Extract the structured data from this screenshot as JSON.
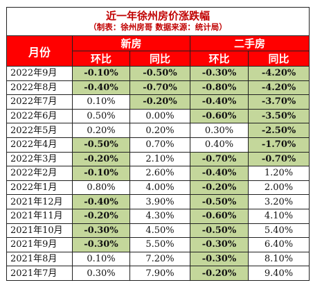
{
  "title": "近一年徐州房价涨跌幅",
  "subtitle": "（制表：徐州房哥   数据来源：统计局）",
  "headers": {
    "month": "月份",
    "new_house": "新房",
    "second_hand": "二手房",
    "mom": "环比",
    "yoy": "同比"
  },
  "colors": {
    "header_bg": "#ff0000",
    "title_text": "#c00000",
    "negative_highlight": "#c4d79b"
  },
  "rows": [
    {
      "month": "2022年9月",
      "new_mom": "-0.10%",
      "new_yoy": "-0.50%",
      "old_mom": "-0.30%",
      "old_yoy": "-4.20%"
    },
    {
      "month": "2022年8月",
      "new_mom": "-0.40%",
      "new_yoy": "-0.70%",
      "old_mom": "-0.80%",
      "old_yoy": "-4.20%"
    },
    {
      "month": "2022年7月",
      "new_mom": "0.10%",
      "new_yoy": "-0.20%",
      "old_mom": "-0.40%",
      "old_yoy": "-3.70%"
    },
    {
      "month": "2022年6月",
      "new_mom": "0.50%",
      "new_yoy": "0.00%",
      "old_mom": "-0.60%",
      "old_yoy": "-3.50%"
    },
    {
      "month": "2022年5月",
      "new_mom": "0.20%",
      "new_yoy": "0.20%",
      "old_mom": "0.30%",
      "old_yoy": "-2.50%"
    },
    {
      "month": "2022年4月",
      "new_mom": "-0.50%",
      "new_yoy": "0.70%",
      "old_mom": "0.40%",
      "old_yoy": "-1.70%"
    },
    {
      "month": "2022年3月",
      "new_mom": "-0.20%",
      "new_yoy": "2.10%",
      "old_mom": "-0.70%",
      "old_yoy": "-0.70%"
    },
    {
      "month": "2022年2月",
      "new_mom": "-0.10%",
      "new_yoy": "2.60%",
      "old_mom": "-0.40%",
      "old_yoy": "1.20%"
    },
    {
      "month": "2022年1月",
      "new_mom": "0.80%",
      "new_yoy": "4.00%",
      "old_mom": "-0.20%",
      "old_yoy": "2.00%"
    },
    {
      "month": "2021年12月",
      "new_mom": "-0.40%",
      "new_yoy": "3.90%",
      "old_mom": "-0.50%",
      "old_yoy": "3.20%"
    },
    {
      "month": "2021年11月",
      "new_mom": "-0.20%",
      "new_yoy": "4.30%",
      "old_mom": "-0.60%",
      "old_yoy": "4.10%"
    },
    {
      "month": "2021年10月",
      "new_mom": "-0.30%",
      "new_yoy": "4.50%",
      "old_mom": "-0.50%",
      "old_yoy": "5.40%"
    },
    {
      "month": "2021年9月",
      "new_mom": "-0.30%",
      "new_yoy": "5.50%",
      "old_mom": "-0.30%",
      "old_yoy": "6.40%"
    },
    {
      "month": "2021年8月",
      "new_mom": "0.10%",
      "new_yoy": "7.20%",
      "old_mom": "-0.30%",
      "old_yoy": "8.10%"
    },
    {
      "month": "2021年7月",
      "new_mom": "0.30%",
      "new_yoy": "7.90%",
      "old_mom": "-0.20%",
      "old_yoy": "9.40%"
    }
  ]
}
